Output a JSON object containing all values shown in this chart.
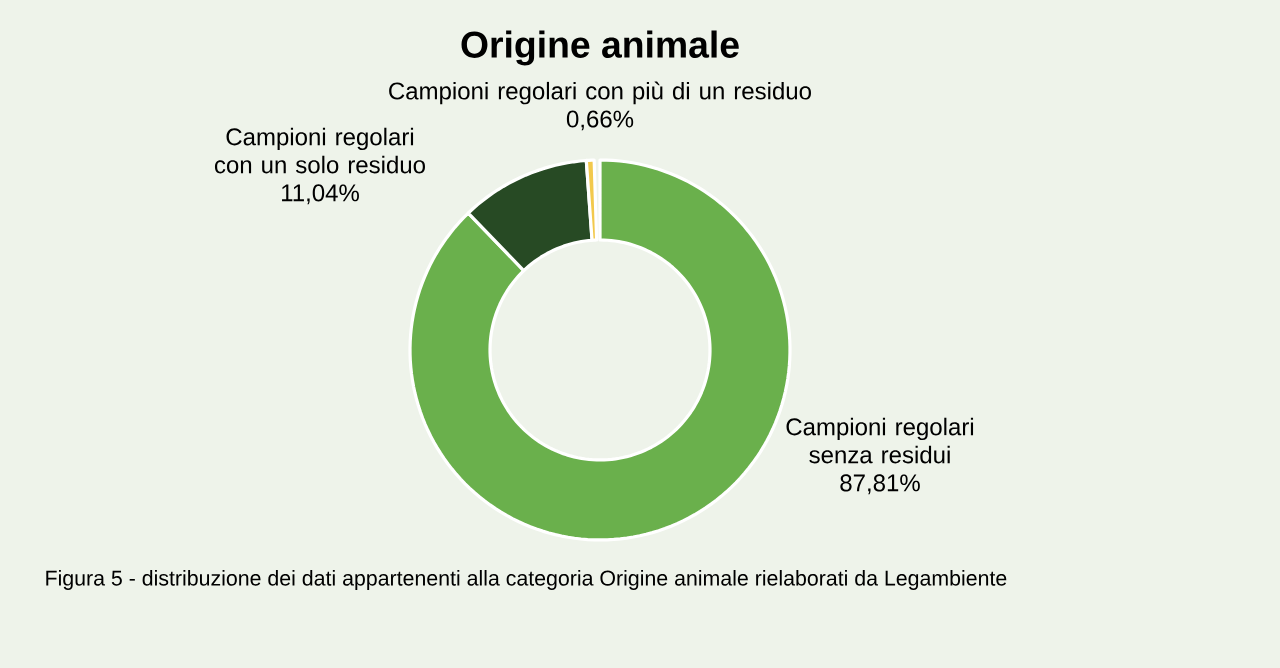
{
  "chart_data": {
    "type": "donut",
    "title": "Origine animale",
    "categories": [
      "Campioni regolari senza residui",
      "Campioni regolari con un solo residuo",
      "Campioni regolari con più di un residuo"
    ],
    "values": [
      87.81,
      11.04,
      0.66
    ],
    "value_labels": [
      "87,81%",
      "11,04%",
      "0,66%"
    ],
    "colors": [
      "#6ab04c",
      "#274a24",
      "#f2c94c"
    ],
    "annotations": [
      "Figura 5 - distribuzione dei dati appartenenti alla categoria Origine animale rielaborati da Legambiente"
    ]
  }
}
